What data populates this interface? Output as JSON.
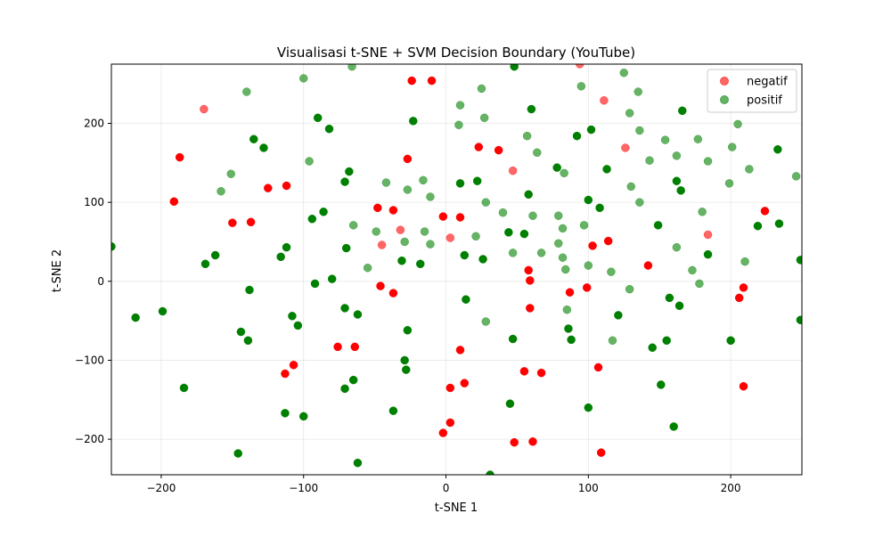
{
  "chart_data": {
    "type": "scatter",
    "title": "Visualisasi t-SNE + SVM Decision Boundary (YouTube)",
    "xlabel": "t-SNE 1",
    "ylabel": "t-SNE 2",
    "xlim": [
      -235,
      250
    ],
    "ylim": [
      -245,
      275
    ],
    "x_ticks": [
      -200,
      -100,
      0,
      100,
      200
    ],
    "y_ticks": [
      -200,
      -100,
      0,
      100,
      200
    ],
    "grid": true,
    "legend_position": "top-right",
    "series": [
      {
        "name": "negatif",
        "color": "#ff0000",
        "points": [
          {
            "x": -170,
            "y": 218,
            "a": 0.6
          },
          {
            "x": -187,
            "y": 157,
            "a": 1
          },
          {
            "x": -191,
            "y": 101,
            "a": 1
          },
          {
            "x": -150,
            "y": 74,
            "a": 1
          },
          {
            "x": -137,
            "y": 75,
            "a": 1
          },
          {
            "x": -125,
            "y": 118,
            "a": 1
          },
          {
            "x": -112,
            "y": 121,
            "a": 1
          },
          {
            "x": -113,
            "y": -117,
            "a": 1
          },
          {
            "x": -107,
            "y": -106,
            "a": 1
          },
          {
            "x": -76,
            "y": -83,
            "a": 1
          },
          {
            "x": -64,
            "y": -83,
            "a": 1
          },
          {
            "x": -48,
            "y": 93,
            "a": 1
          },
          {
            "x": -45,
            "y": 46,
            "a": 0.6
          },
          {
            "x": -46,
            "y": -6,
            "a": 1
          },
          {
            "x": -37,
            "y": 90,
            "a": 1
          },
          {
            "x": -37,
            "y": -15,
            "a": 1
          },
          {
            "x": -32,
            "y": 65,
            "a": 0.6
          },
          {
            "x": -27,
            "y": 155,
            "a": 1
          },
          {
            "x": -24,
            "y": 254,
            "a": 1
          },
          {
            "x": -10,
            "y": 254,
            "a": 1
          },
          {
            "x": -2,
            "y": 82,
            "a": 1
          },
          {
            "x": 3,
            "y": 55,
            "a": 0.6
          },
          {
            "x": 3,
            "y": -135,
            "a": 1
          },
          {
            "x": 3,
            "y": -179,
            "a": 1
          },
          {
            "x": -2,
            "y": -192,
            "a": 1
          },
          {
            "x": 10,
            "y": 81,
            "a": 1
          },
          {
            "x": 10,
            "y": -87,
            "a": 1
          },
          {
            "x": 13,
            "y": -129,
            "a": 1
          },
          {
            "x": 23,
            "y": 170,
            "a": 1
          },
          {
            "x": 37,
            "y": 166,
            "a": 1
          },
          {
            "x": 47,
            "y": 140,
            "a": 0.6
          },
          {
            "x": 48,
            "y": -204,
            "a": 1
          },
          {
            "x": 55,
            "y": -114,
            "a": 1
          },
          {
            "x": 58,
            "y": 14,
            "a": 1
          },
          {
            "x": 59,
            "y": 1,
            "a": 1
          },
          {
            "x": 59,
            "y": -34,
            "a": 1
          },
          {
            "x": 61,
            "y": -203,
            "a": 1
          },
          {
            "x": 67,
            "y": -116,
            "a": 1
          },
          {
            "x": 87,
            "y": -14,
            "a": 1
          },
          {
            "x": 94,
            "y": 275,
            "a": 0.6
          },
          {
            "x": 99,
            "y": -8,
            "a": 1
          },
          {
            "x": 103,
            "y": 45,
            "a": 1
          },
          {
            "x": 107,
            "y": -109,
            "a": 1
          },
          {
            "x": 109,
            "y": -217,
            "a": 1
          },
          {
            "x": 111,
            "y": 229,
            "a": 0.6
          },
          {
            "x": 114,
            "y": 51,
            "a": 1
          },
          {
            "x": 126,
            "y": 169,
            "a": 0.6
          },
          {
            "x": 142,
            "y": 20,
            "a": 1
          },
          {
            "x": 184,
            "y": 59,
            "a": 0.6
          },
          {
            "x": 206,
            "y": -21,
            "a": 1
          },
          {
            "x": 209,
            "y": -8,
            "a": 1
          },
          {
            "x": 209,
            "y": -133,
            "a": 1
          },
          {
            "x": 224,
            "y": 89,
            "a": 1
          }
        ]
      },
      {
        "name": "positif",
        "color": "#008000",
        "points": [
          {
            "x": -235,
            "y": 44,
            "a": 1
          },
          {
            "x": -218,
            "y": -46,
            "a": 1
          },
          {
            "x": -199,
            "y": -38,
            "a": 1
          },
          {
            "x": -184,
            "y": -135,
            "a": 1
          },
          {
            "x": -169,
            "y": 22,
            "a": 1
          },
          {
            "x": -162,
            "y": 33,
            "a": 1
          },
          {
            "x": -158,
            "y": 114,
            "a": 0.6
          },
          {
            "x": -151,
            "y": 136,
            "a": 0.6
          },
          {
            "x": -146,
            "y": -218,
            "a": 1
          },
          {
            "x": -144,
            "y": -64,
            "a": 1
          },
          {
            "x": -140,
            "y": 240,
            "a": 0.6
          },
          {
            "x": -139,
            "y": -75,
            "a": 1
          },
          {
            "x": -138,
            "y": -11,
            "a": 1
          },
          {
            "x": -135,
            "y": 180,
            "a": 1
          },
          {
            "x": -128,
            "y": 169,
            "a": 1
          },
          {
            "x": -116,
            "y": 31,
            "a": 1
          },
          {
            "x": -112,
            "y": 43,
            "a": 1
          },
          {
            "x": -113,
            "y": -167,
            "a": 1
          },
          {
            "x": -108,
            "y": -44,
            "a": 1
          },
          {
            "x": -104,
            "y": -56,
            "a": 1
          },
          {
            "x": -100,
            "y": 257,
            "a": 0.6
          },
          {
            "x": -100,
            "y": -171,
            "a": 1
          },
          {
            "x": -96,
            "y": 152,
            "a": 0.6
          },
          {
            "x": -94,
            "y": 79,
            "a": 1
          },
          {
            "x": -92,
            "y": -3,
            "a": 1
          },
          {
            "x": -90,
            "y": 207,
            "a": 1
          },
          {
            "x": -86,
            "y": 88,
            "a": 1
          },
          {
            "x": -82,
            "y": 193,
            "a": 1
          },
          {
            "x": -80,
            "y": 3,
            "a": 1
          },
          {
            "x": -71,
            "y": 126,
            "a": 1
          },
          {
            "x": -70,
            "y": 42,
            "a": 1
          },
          {
            "x": -71,
            "y": -34,
            "a": 1
          },
          {
            "x": -71,
            "y": -136,
            "a": 1
          },
          {
            "x": -68,
            "y": 139,
            "a": 1
          },
          {
            "x": -66,
            "y": 272,
            "a": 0.6
          },
          {
            "x": -65,
            "y": 71,
            "a": 0.6
          },
          {
            "x": -65,
            "y": -125,
            "a": 1
          },
          {
            "x": -62,
            "y": -42,
            "a": 1
          },
          {
            "x": -62,
            "y": -230,
            "a": 1
          },
          {
            "x": -55,
            "y": 17,
            "a": 0.6
          },
          {
            "x": -49,
            "y": 63,
            "a": 0.6
          },
          {
            "x": -42,
            "y": 125,
            "a": 0.6
          },
          {
            "x": -37,
            "y": -164,
            "a": 1
          },
          {
            "x": -31,
            "y": 26,
            "a": 1
          },
          {
            "x": -29,
            "y": 50,
            "a": 0.6
          },
          {
            "x": -29,
            "y": -100,
            "a": 1
          },
          {
            "x": -28,
            "y": -112,
            "a": 1
          },
          {
            "x": -27,
            "y": 116,
            "a": 0.6
          },
          {
            "x": -27,
            "y": -62,
            "a": 1
          },
          {
            "x": -23,
            "y": 203,
            "a": 1
          },
          {
            "x": -18,
            "y": 22,
            "a": 1
          },
          {
            "x": -16,
            "y": 128,
            "a": 0.6
          },
          {
            "x": -15,
            "y": 63,
            "a": 0.6
          },
          {
            "x": -11,
            "y": 107,
            "a": 0.6
          },
          {
            "x": -11,
            "y": 47,
            "a": 0.6
          },
          {
            "x": 9,
            "y": 198,
            "a": 0.6
          },
          {
            "x": 10,
            "y": 223,
            "a": 0.6
          },
          {
            "x": 10,
            "y": 124,
            "a": 1
          },
          {
            "x": 13,
            "y": 33,
            "a": 1
          },
          {
            "x": 14,
            "y": -23,
            "a": 1
          },
          {
            "x": 21,
            "y": 57,
            "a": 0.6
          },
          {
            "x": 22,
            "y": 127,
            "a": 1
          },
          {
            "x": 25,
            "y": 244,
            "a": 0.6
          },
          {
            "x": 26,
            "y": 28,
            "a": 1
          },
          {
            "x": 27,
            "y": 207,
            "a": 0.6
          },
          {
            "x": 28,
            "y": -51,
            "a": 0.6
          },
          {
            "x": 28,
            "y": 100,
            "a": 0.6
          },
          {
            "x": 31,
            "y": -245,
            "a": 1
          },
          {
            "x": 40,
            "y": 87,
            "a": 0.6
          },
          {
            "x": 44,
            "y": 62,
            "a": 1
          },
          {
            "x": 45,
            "y": -155,
            "a": 1
          },
          {
            "x": 47,
            "y": 36,
            "a": 0.6
          },
          {
            "x": 47,
            "y": -73,
            "a": 1
          },
          {
            "x": 48,
            "y": 272,
            "a": 1
          },
          {
            "x": 55,
            "y": 60,
            "a": 1
          },
          {
            "x": 57,
            "y": 184,
            "a": 0.6
          },
          {
            "x": 58,
            "y": 110,
            "a": 1
          },
          {
            "x": 60,
            "y": 218,
            "a": 1
          },
          {
            "x": 61,
            "y": 83,
            "a": 0.6
          },
          {
            "x": 64,
            "y": 163,
            "a": 0.6
          },
          {
            "x": 67,
            "y": 36,
            "a": 0.6
          },
          {
            "x": 78,
            "y": 144,
            "a": 1
          },
          {
            "x": 79,
            "y": 83,
            "a": 0.6
          },
          {
            "x": 79,
            "y": 48,
            "a": 0.6
          },
          {
            "x": 82,
            "y": 67,
            "a": 0.6
          },
          {
            "x": 82,
            "y": 30,
            "a": 0.6
          },
          {
            "x": 83,
            "y": 137,
            "a": 0.6
          },
          {
            "x": 84,
            "y": 15,
            "a": 0.6
          },
          {
            "x": 85,
            "y": -36,
            "a": 0.6
          },
          {
            "x": 86,
            "y": -60,
            "a": 1
          },
          {
            "x": 88,
            "y": -74,
            "a": 1
          },
          {
            "x": 92,
            "y": 184,
            "a": 1
          },
          {
            "x": 95,
            "y": 247,
            "a": 0.6
          },
          {
            "x": 97,
            "y": 71,
            "a": 0.6
          },
          {
            "x": 100,
            "y": 103,
            "a": 1
          },
          {
            "x": 100,
            "y": 20,
            "a": 0.6
          },
          {
            "x": 100,
            "y": -160,
            "a": 1
          },
          {
            "x": 102,
            "y": 192,
            "a": 1
          },
          {
            "x": 108,
            "y": 93,
            "a": 1
          },
          {
            "x": 113,
            "y": 142,
            "a": 1
          },
          {
            "x": 116,
            "y": 12,
            "a": 0.6
          },
          {
            "x": 117,
            "y": -75,
            "a": 0.6
          },
          {
            "x": 121,
            "y": -43,
            "a": 1
          },
          {
            "x": 125,
            "y": 264,
            "a": 0.6
          },
          {
            "x": 129,
            "y": -10,
            "a": 0.6
          },
          {
            "x": 129,
            "y": 213,
            "a": 0.6
          },
          {
            "x": 130,
            "y": 120,
            "a": 0.6
          },
          {
            "x": 135,
            "y": 240,
            "a": 0.6
          },
          {
            "x": 136,
            "y": 191,
            "a": 0.6
          },
          {
            "x": 136,
            "y": 100,
            "a": 0.6
          },
          {
            "x": 143,
            "y": 153,
            "a": 0.6
          },
          {
            "x": 145,
            "y": -84,
            "a": 1
          },
          {
            "x": 149,
            "y": 71,
            "a": 1
          },
          {
            "x": 151,
            "y": -131,
            "a": 1
          },
          {
            "x": 154,
            "y": 179,
            "a": 0.6
          },
          {
            "x": 155,
            "y": -75,
            "a": 1
          },
          {
            "x": 157,
            "y": -21,
            "a": 1
          },
          {
            "x": 160,
            "y": -184,
            "a": 1
          },
          {
            "x": 162,
            "y": 159,
            "a": 0.6
          },
          {
            "x": 162,
            "y": 43,
            "a": 0.6
          },
          {
            "x": 162,
            "y": 127,
            "a": 1
          },
          {
            "x": 164,
            "y": -31,
            "a": 1
          },
          {
            "x": 165,
            "y": 115,
            "a": 1
          },
          {
            "x": 166,
            "y": 216,
            "a": 1
          },
          {
            "x": 173,
            "y": 14,
            "a": 0.6
          },
          {
            "x": 177,
            "y": 180,
            "a": 0.6
          },
          {
            "x": 178,
            "y": -3,
            "a": 0.6
          },
          {
            "x": 180,
            "y": 88,
            "a": 0.6
          },
          {
            "x": 184,
            "y": 152,
            "a": 0.6
          },
          {
            "x": 184,
            "y": 34,
            "a": 1
          },
          {
            "x": 199,
            "y": 124,
            "a": 0.6
          },
          {
            "x": 200,
            "y": -75,
            "a": 1
          },
          {
            "x": 201,
            "y": 170,
            "a": 0.6
          },
          {
            "x": 205,
            "y": 199,
            "a": 0.6
          },
          {
            "x": 210,
            "y": 25,
            "a": 0.6
          },
          {
            "x": 213,
            "y": 142,
            "a": 0.6
          },
          {
            "x": 219,
            "y": 70,
            "a": 1
          },
          {
            "x": 233,
            "y": 167,
            "a": 1
          },
          {
            "x": 234,
            "y": 73,
            "a": 1
          },
          {
            "x": 246,
            "y": 133,
            "a": 0.6
          },
          {
            "x": 249,
            "y": 27,
            "a": 1
          },
          {
            "x": 249,
            "y": -49,
            "a": 1
          }
        ]
      }
    ]
  }
}
